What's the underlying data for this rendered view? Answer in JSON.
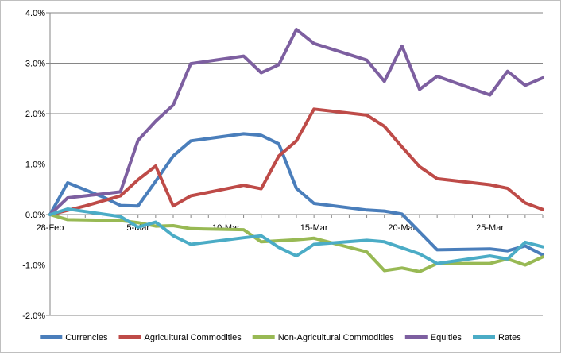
{
  "chart_data": {
    "type": "line",
    "x": [
      "28-Feb",
      "1-Mar",
      "2-Mar",
      "3-Mar",
      "4-Mar",
      "5-Mar",
      "6-Mar",
      "7-Mar",
      "8-Mar",
      "9-Mar",
      "10-Mar",
      "11-Mar",
      "12-Mar",
      "13-Mar",
      "14-Mar",
      "15-Mar",
      "16-Mar",
      "17-Mar",
      "18-Mar",
      "19-Mar",
      "20-Mar",
      "21-Mar",
      "22-Mar",
      "23-Mar",
      "24-Mar",
      "25-Mar",
      "26-Mar",
      "27-Mar",
      "28-Mar"
    ],
    "x_tick_labels": [
      "28-Feb",
      "5-Mar",
      "10-Mar",
      "15-Mar",
      "20-Mar",
      "25-Mar"
    ],
    "ylim": [
      -0.02,
      0.04
    ],
    "y_tick_labels": [
      "4.0%",
      "3.0%",
      "2.0%",
      "1.0%",
      "0.0%",
      "-1.0%",
      "-2.0%"
    ],
    "grid": "horizontal",
    "legend_position": "bottom",
    "series": [
      {
        "name": "Currencies",
        "color": "#4a7ebb",
        "points": [
          [
            "28-Feb",
            0.0
          ],
          [
            "1-Mar",
            0.0063
          ],
          [
            "3-Mar",
            0.0035
          ],
          [
            "4-Mar",
            0.0018
          ],
          [
            "5-Mar",
            0.0017
          ],
          [
            "6-Mar",
            0.0066
          ],
          [
            "7-Mar",
            0.0116
          ],
          [
            "8-Mar",
            0.0146
          ],
          [
            "11-Mar",
            0.016
          ],
          [
            "12-Mar",
            0.0157
          ],
          [
            "13-Mar",
            0.014
          ],
          [
            "14-Mar",
            0.0052
          ],
          [
            "15-Mar",
            0.0022
          ],
          [
            "18-Mar",
            0.0009
          ],
          [
            "19-Mar",
            0.0007
          ],
          [
            "20-Mar",
            0.0001
          ],
          [
            "22-Mar",
            -0.007
          ],
          [
            "25-Mar",
            -0.0068
          ],
          [
            "26-Mar",
            -0.0072
          ],
          [
            "27-Mar",
            -0.0062
          ],
          [
            "28-Mar",
            -0.008
          ]
        ]
      },
      {
        "name": "Agricultural Commodities",
        "color": "#be4b48",
        "points": [
          [
            "28-Feb",
            0.0
          ],
          [
            "2-Mar",
            0.0017
          ],
          [
            "4-Mar",
            0.0037
          ],
          [
            "5-Mar",
            0.0069
          ],
          [
            "6-Mar",
            0.0096
          ],
          [
            "7-Mar",
            0.0017
          ],
          [
            "8-Mar",
            0.0037
          ],
          [
            "11-Mar",
            0.0058
          ],
          [
            "12-Mar",
            0.0051
          ],
          [
            "13-Mar",
            0.0116
          ],
          [
            "14-Mar",
            0.0146
          ],
          [
            "15-Mar",
            0.0209
          ],
          [
            "18-Mar",
            0.0197
          ],
          [
            "19-Mar",
            0.0175
          ],
          [
            "20-Mar",
            0.0134
          ],
          [
            "21-Mar",
            0.0095
          ],
          [
            "22-Mar",
            0.0071
          ],
          [
            "25-Mar",
            0.0059
          ],
          [
            "26-Mar",
            0.0052
          ],
          [
            "27-Mar",
            0.0023
          ],
          [
            "28-Mar",
            0.001
          ]
        ]
      },
      {
        "name": "Non-Agricultural Commodities",
        "color": "#98b954",
        "points": [
          [
            "28-Feb",
            0.0
          ],
          [
            "1-Mar",
            -0.001
          ],
          [
            "4-Mar",
            -0.0012
          ],
          [
            "5-Mar",
            -0.0016
          ],
          [
            "6-Mar",
            -0.0023
          ],
          [
            "7-Mar",
            -0.0022
          ],
          [
            "8-Mar",
            -0.0028
          ],
          [
            "11-Mar",
            -0.003
          ],
          [
            "12-Mar",
            -0.0054
          ],
          [
            "13-Mar",
            -0.0052
          ],
          [
            "14-Mar",
            -0.005
          ],
          [
            "15-Mar",
            -0.0047
          ],
          [
            "18-Mar",
            -0.0074
          ],
          [
            "19-Mar",
            -0.0111
          ],
          [
            "20-Mar",
            -0.0106
          ],
          [
            "21-Mar",
            -0.0113
          ],
          [
            "22-Mar",
            -0.0097
          ],
          [
            "25-Mar",
            -0.0097
          ],
          [
            "26-Mar",
            -0.0088
          ],
          [
            "27-Mar",
            -0.01
          ],
          [
            "28-Mar",
            -0.0084
          ]
        ]
      },
      {
        "name": "Equities",
        "color": "#7d5fa0",
        "points": [
          [
            "28-Feb",
            0.0
          ],
          [
            "1-Mar",
            0.0033
          ],
          [
            "4-Mar",
            0.0045
          ],
          [
            "5-Mar",
            0.0147
          ],
          [
            "6-Mar",
            0.0185
          ],
          [
            "7-Mar",
            0.0217
          ],
          [
            "8-Mar",
            0.0299
          ],
          [
            "11-Mar",
            0.0314
          ],
          [
            "12-Mar",
            0.0281
          ],
          [
            "13-Mar",
            0.0297
          ],
          [
            "14-Mar",
            0.0367
          ],
          [
            "15-Mar",
            0.0339
          ],
          [
            "18-Mar",
            0.0306
          ],
          [
            "19-Mar",
            0.0264
          ],
          [
            "20-Mar",
            0.0334
          ],
          [
            "21-Mar",
            0.0248
          ],
          [
            "22-Mar",
            0.0274
          ],
          [
            "25-Mar",
            0.0237
          ],
          [
            "26-Mar",
            0.0284
          ],
          [
            "27-Mar",
            0.0256
          ],
          [
            "28-Mar",
            0.0271
          ]
        ]
      },
      {
        "name": "Rates",
        "color": "#4bacc6",
        "points": [
          [
            "28-Feb",
            0.0
          ],
          [
            "1-Mar",
            0.0011
          ],
          [
            "2-Mar",
            0.0006
          ],
          [
            "4-Mar",
            -0.0004
          ],
          [
            "5-Mar",
            -0.0025
          ],
          [
            "6-Mar",
            -0.0015
          ],
          [
            "7-Mar",
            -0.0042
          ],
          [
            "8-Mar",
            -0.0059
          ],
          [
            "11-Mar",
            -0.0046
          ],
          [
            "12-Mar",
            -0.0042
          ],
          [
            "13-Mar",
            -0.0065
          ],
          [
            "14-Mar",
            -0.0082
          ],
          [
            "15-Mar",
            -0.0059
          ],
          [
            "18-Mar",
            -0.0051
          ],
          [
            "19-Mar",
            -0.0054
          ],
          [
            "21-Mar",
            -0.0078
          ],
          [
            "22-Mar",
            -0.0097
          ],
          [
            "25-Mar",
            -0.0082
          ],
          [
            "26-Mar",
            -0.0088
          ],
          [
            "27-Mar",
            -0.0055
          ],
          [
            "28-Mar",
            -0.0064
          ]
        ]
      }
    ]
  }
}
